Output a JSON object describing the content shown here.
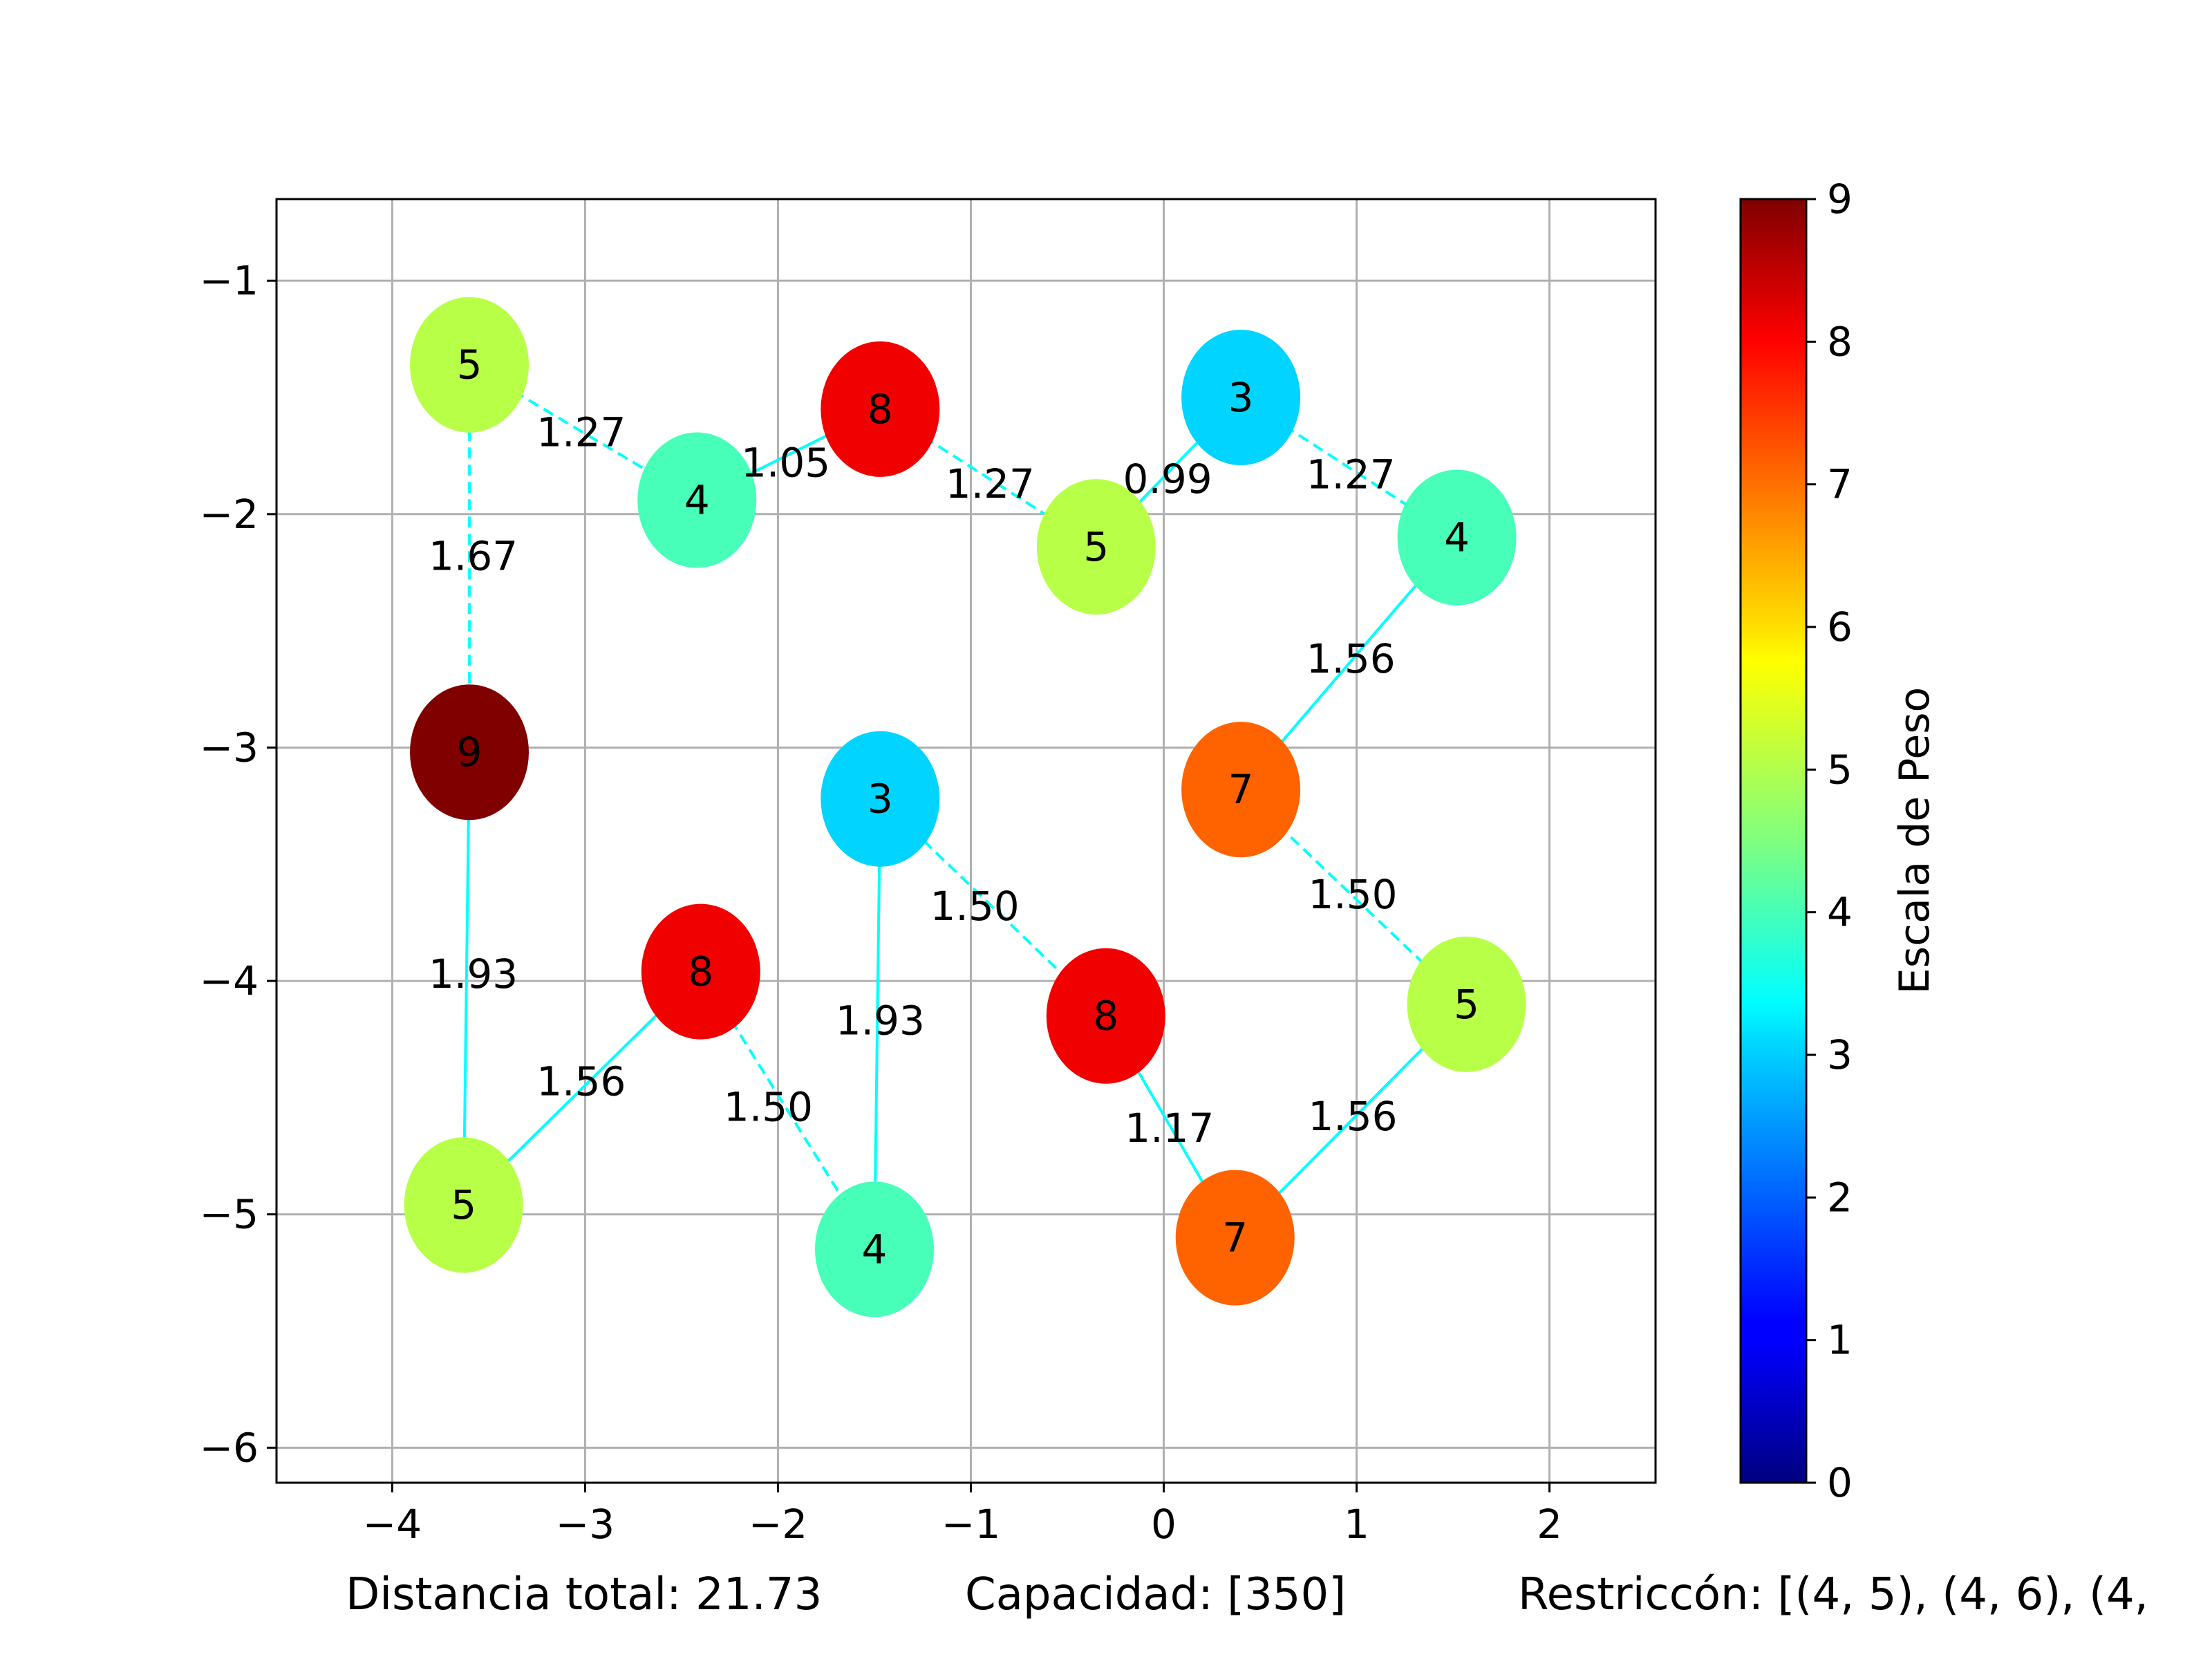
{
  "chart_data": {
    "type": "scatter",
    "xlim": [
      -4.6,
      2.55
    ],
    "ylim": [
      -6.15,
      -0.65
    ],
    "y_inverted": true,
    "xticks": [
      -4,
      -3,
      -2,
      -1,
      0,
      1,
      2
    ],
    "yticks": [
      -1,
      -2,
      -3,
      -4,
      -5,
      -6
    ],
    "tick_labels_x": [
      "−4",
      "−3",
      "−2",
      "−1",
      "0",
      "1",
      "2"
    ],
    "tick_labels_y": [
      "−1",
      "−2",
      "−3",
      "−4",
      "−5",
      "−6"
    ],
    "grid": true,
    "colormap": "jet",
    "colorbar": {
      "label": "Escala de Peso",
      "min": 0,
      "max": 9,
      "ticks": [
        "0",
        "1",
        "2",
        "3",
        "4",
        "5",
        "6",
        "7",
        "8",
        "9"
      ]
    },
    "nodes": [
      {
        "x": -3.6,
        "y": -1.36,
        "weight": 5,
        "label": "5"
      },
      {
        "x": -2.42,
        "y": -1.94,
        "weight": 4,
        "label": "4"
      },
      {
        "x": -1.47,
        "y": -1.55,
        "weight": 8,
        "label": "8"
      },
      {
        "x": -0.35,
        "y": -2.14,
        "weight": 5,
        "label": "5"
      },
      {
        "x": 0.4,
        "y": -1.5,
        "weight": 3,
        "label": "3"
      },
      {
        "x": 1.52,
        "y": -2.1,
        "weight": 4,
        "label": "4"
      },
      {
        "x": 0.4,
        "y": -3.18,
        "weight": 7,
        "label": "7"
      },
      {
        "x": 1.57,
        "y": -4.1,
        "weight": 5,
        "label": "5"
      },
      {
        "x": 0.37,
        "y": -5.1,
        "weight": 7,
        "label": "7"
      },
      {
        "x": -0.3,
        "y": -4.15,
        "weight": 8,
        "label": "8"
      },
      {
        "x": -1.47,
        "y": -3.22,
        "weight": 3,
        "label": "3"
      },
      {
        "x": -1.5,
        "y": -5.15,
        "weight": 4,
        "label": "4"
      },
      {
        "x": -2.4,
        "y": -3.96,
        "weight": 8,
        "label": "8"
      },
      {
        "x": -3.63,
        "y": -4.96,
        "weight": 5,
        "label": "5"
      },
      {
        "x": -3.6,
        "y": -3.02,
        "weight": 9,
        "label": "9"
      }
    ],
    "edges": [
      {
        "from": 0,
        "to": 1,
        "label": "1.27",
        "dashed": true,
        "lx": -3.02,
        "ly": -1.65
      },
      {
        "from": 1,
        "to": 2,
        "label": "1.05",
        "dashed": false,
        "lx": -1.96,
        "ly": -1.78
      },
      {
        "from": 2,
        "to": 3,
        "label": "1.27",
        "dashed": true,
        "lx": -0.9,
        "ly": -1.87
      },
      {
        "from": 3,
        "to": 4,
        "label": "0.99",
        "dashed": false,
        "lx": 0.02,
        "ly": -1.85
      },
      {
        "from": 4,
        "to": 5,
        "label": "1.27",
        "dashed": true,
        "lx": 0.97,
        "ly": -1.83
      },
      {
        "from": 5,
        "to": 6,
        "label": "1.56",
        "dashed": false,
        "lx": 0.97,
        "ly": -2.62
      },
      {
        "from": 6,
        "to": 7,
        "label": "1.50",
        "dashed": true,
        "lx": 0.98,
        "ly": -3.63
      },
      {
        "from": 7,
        "to": 8,
        "label": "1.56",
        "dashed": false,
        "lx": 0.98,
        "ly": -4.58
      },
      {
        "from": 8,
        "to": 9,
        "label": "1.17",
        "dashed": false,
        "lx": 0.03,
        "ly": -4.63
      },
      {
        "from": 9,
        "to": 10,
        "label": "1.50",
        "dashed": true,
        "lx": -0.98,
        "ly": -3.68
      },
      {
        "from": 10,
        "to": 11,
        "label": "1.93",
        "dashed": false,
        "lx": -1.47,
        "ly": -4.17
      },
      {
        "from": 11,
        "to": 12,
        "label": "1.50",
        "dashed": true,
        "lx": -2.05,
        "ly": -4.54
      },
      {
        "from": 12,
        "to": 13,
        "label": "1.56",
        "dashed": false,
        "lx": -3.02,
        "ly": -4.43
      },
      {
        "from": 13,
        "to": 14,
        "label": "1.93",
        "dashed": false,
        "lx": -3.58,
        "ly": -3.97
      },
      {
        "from": 14,
        "to": 0,
        "label": "1.67",
        "dashed": true,
        "lx": -3.58,
        "ly": -2.18
      }
    ]
  },
  "footer": {
    "distance": "Distancia total: 21.73",
    "capacity": "Capacidad: [350]",
    "restriction": "Restriccón: [(4, 5), (4, 6), (4,"
  }
}
